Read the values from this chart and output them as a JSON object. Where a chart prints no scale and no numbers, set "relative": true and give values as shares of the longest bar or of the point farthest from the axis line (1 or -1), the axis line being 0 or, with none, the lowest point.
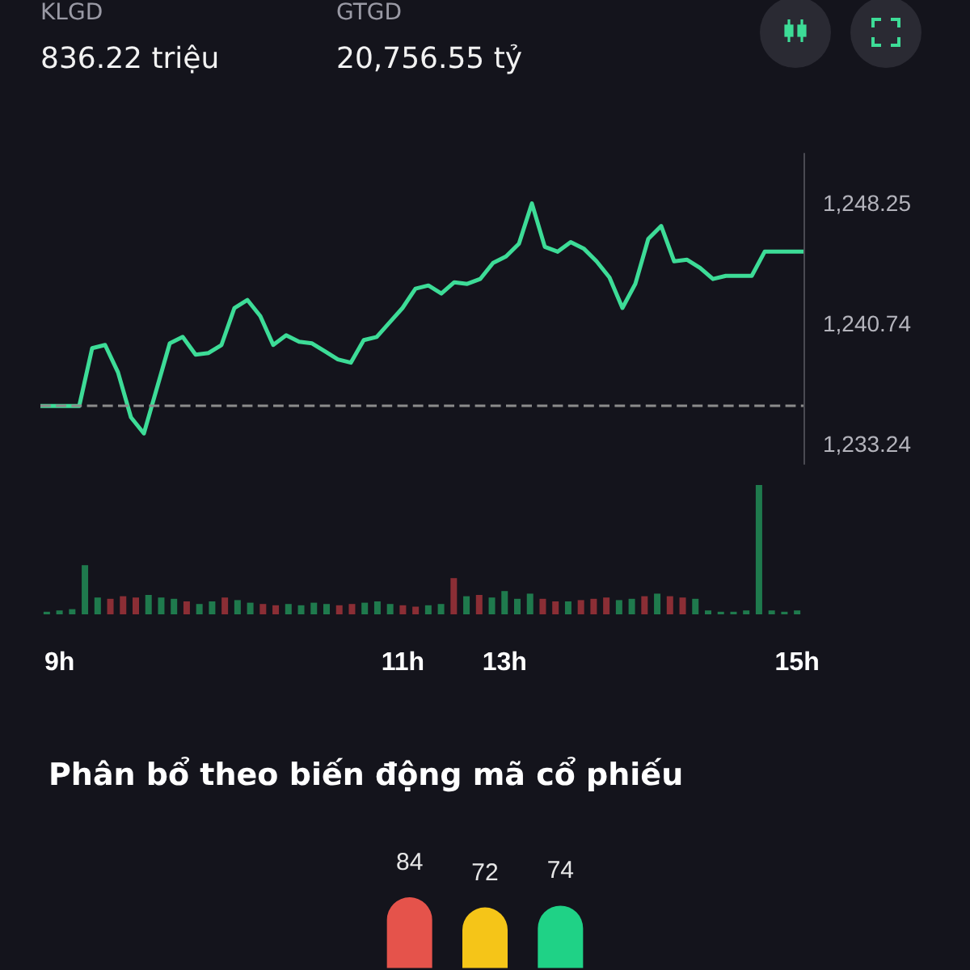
{
  "chart_data": [
    {
      "type": "line",
      "annotations": [
        "KLGD",
        "836.22 triệu",
        "GTGD",
        "20,756.55 tỷ"
      ],
      "categories": [
        null,
        null,
        null,
        null,
        null,
        null,
        null,
        null,
        null,
        null,
        null,
        null,
        null,
        null,
        null,
        null,
        null,
        null,
        null,
        null,
        null,
        null,
        null,
        null,
        null,
        null,
        null,
        null,
        null,
        null,
        null,
        null,
        null,
        null,
        null,
        null,
        null,
        null,
        null,
        null,
        null,
        null,
        null,
        null,
        null,
        null,
        null,
        null,
        null,
        null,
        null,
        null,
        null,
        null,
        null,
        null,
        null,
        null,
        null,
        null
      ],
      "values": [
        1235.6,
        1235.6,
        1235.6,
        1235.6,
        1239.2,
        1239.4,
        1237.7,
        1234.9,
        1233.9,
        1236.7,
        1239.5,
        1239.9,
        1238.8,
        1238.9,
        1239.4,
        1241.7,
        1242.2,
        1241.2,
        1239.4,
        1240.0,
        1239.6,
        1239.5,
        1239.0,
        1238.5,
        1238.3,
        1239.7,
        1239.9,
        1240.8,
        1241.7,
        1242.9,
        1243.1,
        1242.6,
        1243.3,
        1243.2,
        1243.5,
        1244.5,
        1244.9,
        1245.7,
        1248.2,
        1245.5,
        1245.2,
        1245.8,
        1245.4,
        1244.6,
        1243.6,
        1241.7,
        1243.2,
        1246.0,
        1246.8,
        1244.6,
        1244.7,
        1244.2,
        1243.5,
        1243.7,
        1243.7,
        1243.7,
        1245.2,
        1245.2,
        1245.2,
        1245.2
      ],
      "color": "#3ddc97",
      "ylim": [
        1232.0,
        1251.3
      ],
      "yticks": [
        {
          "value": 1233.24,
          "label": "1,233.24"
        },
        {
          "value": 1240.74,
          "label": "1,240.74"
        },
        {
          "value": 1248.25,
          "label": "1,248.25"
        }
      ],
      "ref_lines": [
        {
          "axis": "y",
          "value": 1235.6,
          "color": "#8c8c8c",
          "line_style": "dashed"
        }
      ],
      "tick_labels": "y"
    },
    {
      "type": "bar",
      "relative": true,
      "categories": [
        null,
        "9h",
        null,
        null,
        null,
        null,
        null,
        null,
        null,
        null,
        null,
        null,
        null,
        null,
        null,
        null,
        null,
        null,
        null,
        null,
        null,
        null,
        null,
        null,
        null,
        null,
        null,
        null,
        "11h",
        null,
        null,
        null,
        null,
        null,
        null,
        null,
        "13h",
        null,
        null,
        null,
        null,
        null,
        null,
        null,
        null,
        null,
        null,
        null,
        null,
        null,
        null,
        null,
        null,
        null,
        null,
        null,
        null,
        null,
        null,
        "15h"
      ],
      "values": [
        0.02,
        0.03,
        0.04,
        0.38,
        0.13,
        0.12,
        0.14,
        0.13,
        0.15,
        0.13,
        0.12,
        0.1,
        0.08,
        0.1,
        0.13,
        0.11,
        0.09,
        0.08,
        0.07,
        0.08,
        0.07,
        0.09,
        0.08,
        0.07,
        0.08,
        0.09,
        0.1,
        0.08,
        0.07,
        0.06,
        0.07,
        0.08,
        0.28,
        0.14,
        0.15,
        0.13,
        0.18,
        0.12,
        0.16,
        0.12,
        0.1,
        0.1,
        0.11,
        0.12,
        0.13,
        0.11,
        0.12,
        0.14,
        0.16,
        0.14,
        0.13,
        0.12,
        0.03,
        0.02,
        0.02,
        0.03,
        1.0,
        0.03,
        0.02,
        0.03
      ],
      "colors": [
        "#1f7a4d",
        "#1f7a4d",
        "#1f7a4d",
        "#1f7a4d",
        "#1f7a4d",
        "#8b2e35",
        "#8b2e35",
        "#8b2e35",
        "#1f7a4d",
        "#1f7a4d",
        "#1f7a4d",
        "#8b2e35",
        "#1f7a4d",
        "#1f7a4d",
        "#8b2e35",
        "#1f7a4d",
        "#1f7a4d",
        "#8b2e35",
        "#8b2e35",
        "#1f7a4d",
        "#1f7a4d",
        "#1f7a4d",
        "#1f7a4d",
        "#8b2e35",
        "#8b2e35",
        "#1f7a4d",
        "#1f7a4d",
        "#1f7a4d",
        "#8b2e35",
        "#8b2e35",
        "#1f7a4d",
        "#1f7a4d",
        "#8b2e35",
        "#1f7a4d",
        "#8b2e35",
        "#1f7a4d",
        "#1f7a4d",
        "#1f7a4d",
        "#1f7a4d",
        "#8b2e35",
        "#8b2e35",
        "#1f7a4d",
        "#8b2e35",
        "#8b2e35",
        "#8b2e35",
        "#1f7a4d",
        "#1f7a4d",
        "#8b2e35",
        "#1f7a4d",
        "#8b2e35",
        "#8b2e35",
        "#1f7a4d",
        "#1f7a4d",
        "#1f7a4d",
        "#1f7a4d",
        "#1f7a4d",
        "#1f7a4d",
        "#1f7a4d",
        "#1f7a4d",
        "#1f7a4d"
      ]
    },
    {
      "type": "bar",
      "title": "Phân bổ theo biến động mã cổ phiếu",
      "categories": [
        null,
        null,
        null
      ],
      "values": [
        84,
        72,
        74
      ],
      "colors": [
        "#e5534b",
        "#f5c518",
        "#1fd286"
      ],
      "data_labels": true
    }
  ]
}
